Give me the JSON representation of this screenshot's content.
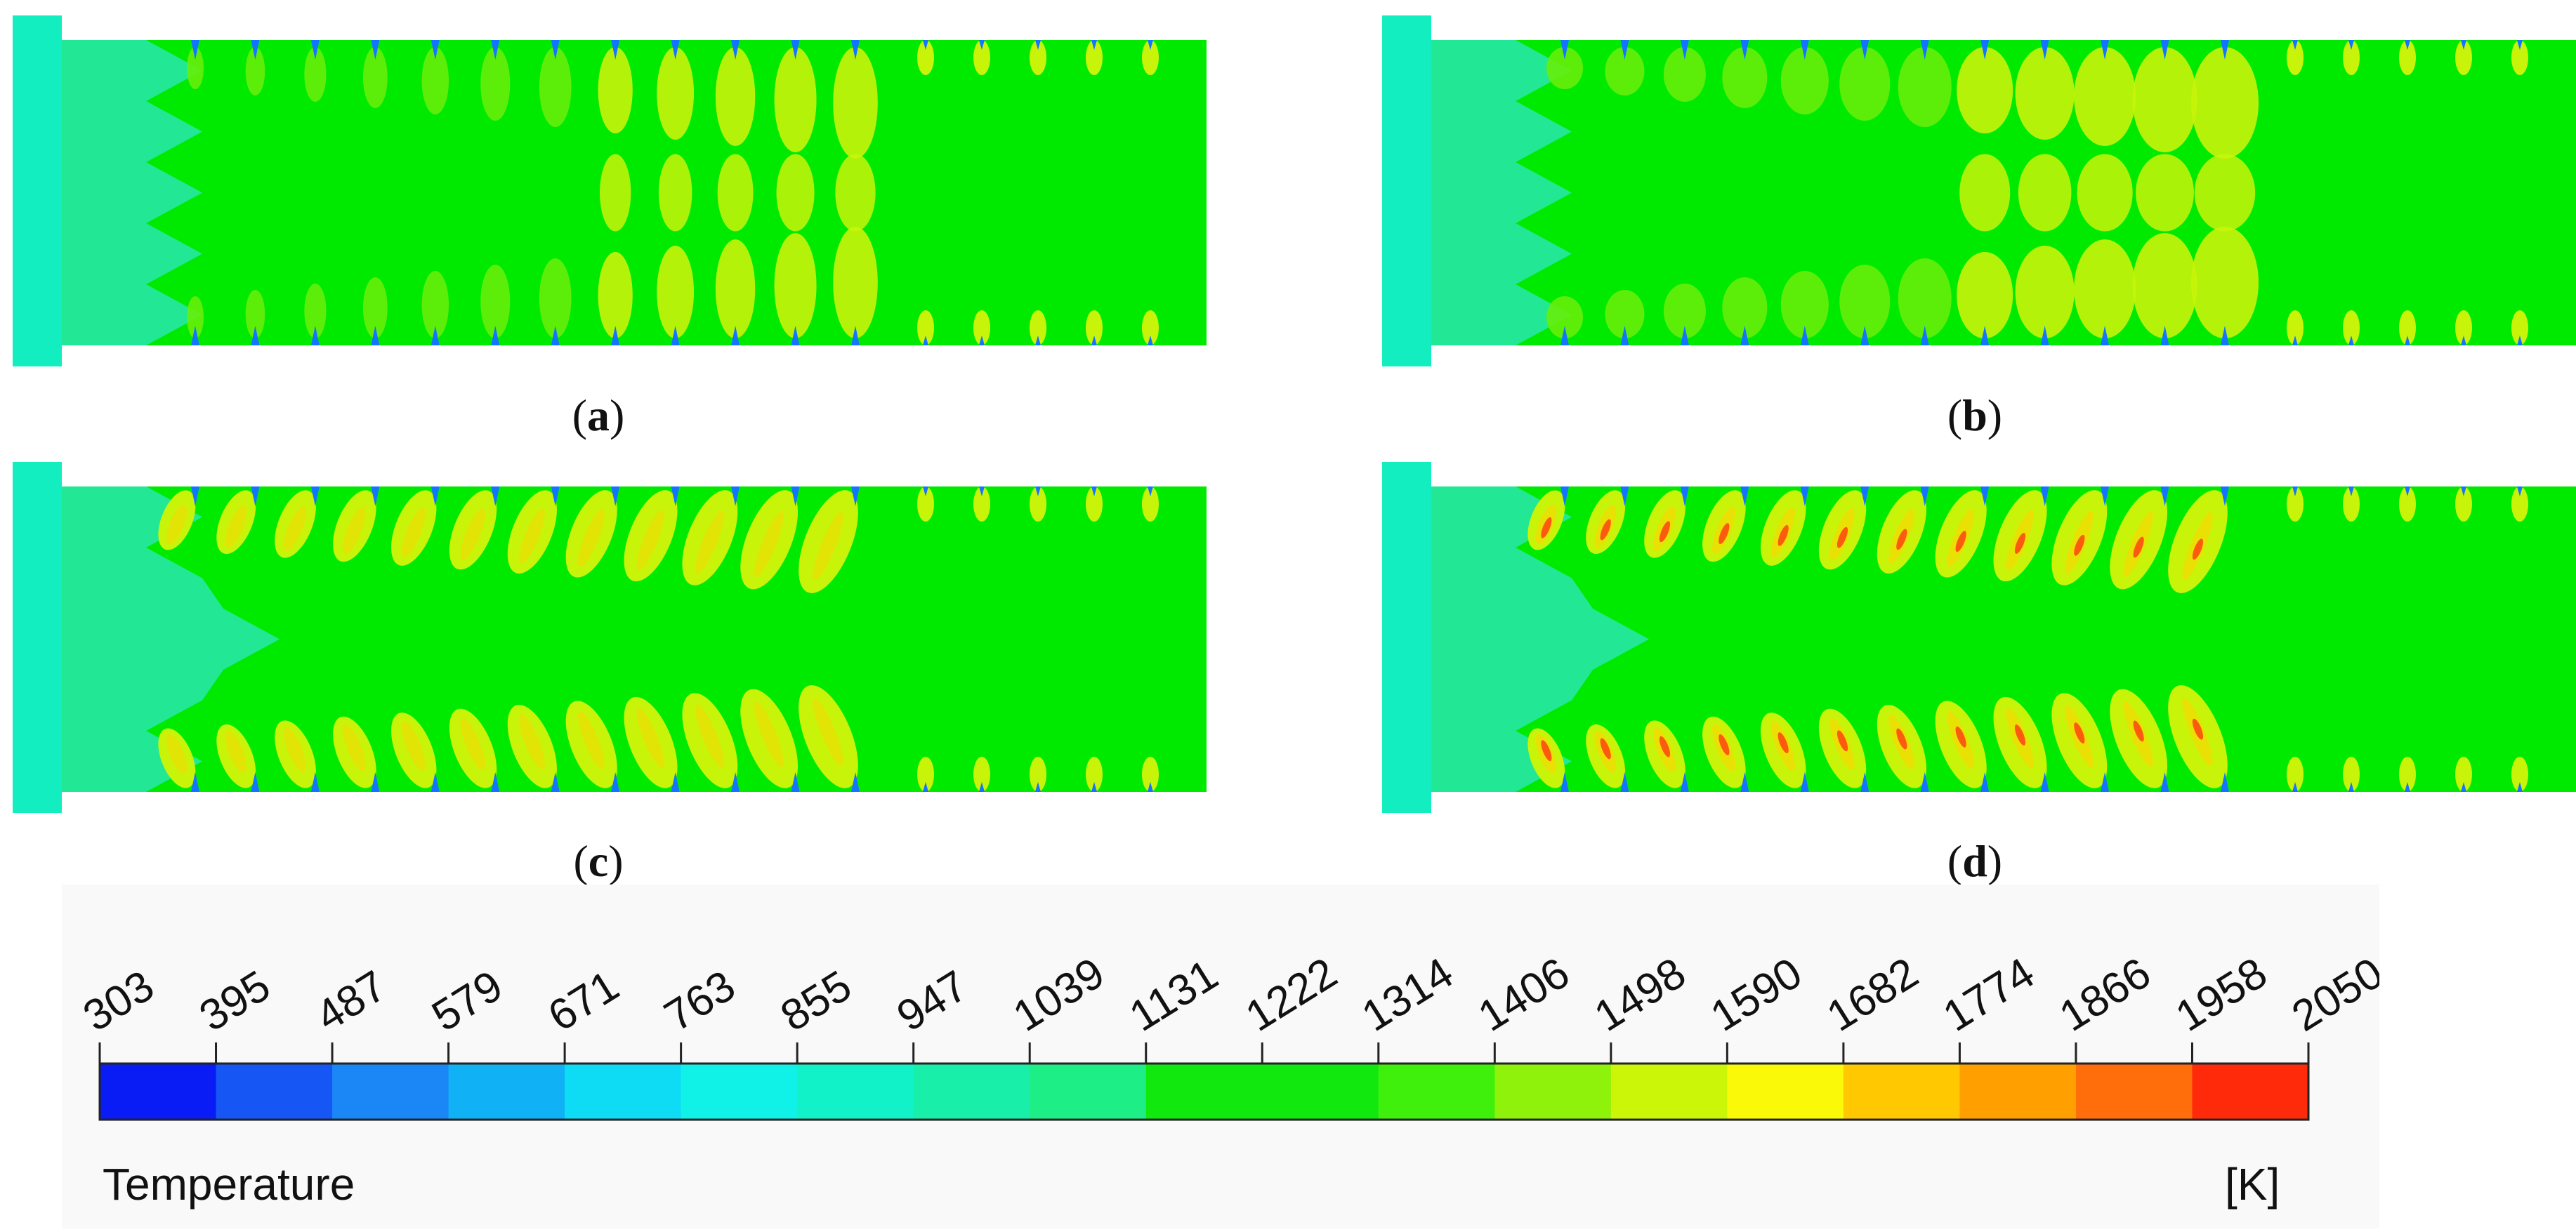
{
  "figure": {
    "panels": [
      {
        "label": "a",
        "pattern": "symmetric",
        "intensity": 0.55
      },
      {
        "label": "b",
        "pattern": "banded",
        "intensity": 0.6
      },
      {
        "label": "c",
        "pattern": "swept",
        "intensity": 0.8
      },
      {
        "label": "d",
        "pattern": "swept-hot",
        "intensity": 1.0
      }
    ],
    "colorbar": {
      "title": "Temperature",
      "unit": "[K]",
      "ticks": [
        "303",
        "395",
        "487",
        "579",
        "671",
        "763",
        "855",
        "947",
        "1039",
        "1131",
        "1222",
        "1314",
        "1406",
        "1498",
        "1590",
        "1682",
        "1774",
        "1866",
        "1958",
        "2050"
      ],
      "colors": [
        "#0a1cf5",
        "#1656f5",
        "#1b86f5",
        "#10b2f5",
        "#0edcf5",
        "#10f2e8",
        "#12f2c8",
        "#18f0aa",
        "#1eee86",
        "#10e80e",
        "#10e80e",
        "#3ef00c",
        "#8ef20a",
        "#ccf608",
        "#fafa08",
        "#ffc800",
        "#ffa000",
        "#ff6e0a",
        "#ff2a0a"
      ]
    },
    "colors": {
      "background": "#00ea00",
      "inlet": "#22e896",
      "inlet_edge": "#12eec0",
      "band": "#66ee0a",
      "warm": "#c8f40a",
      "hot": "#ffd400",
      "red": "#ff3a10",
      "jet": "#1474ff"
    }
  }
}
